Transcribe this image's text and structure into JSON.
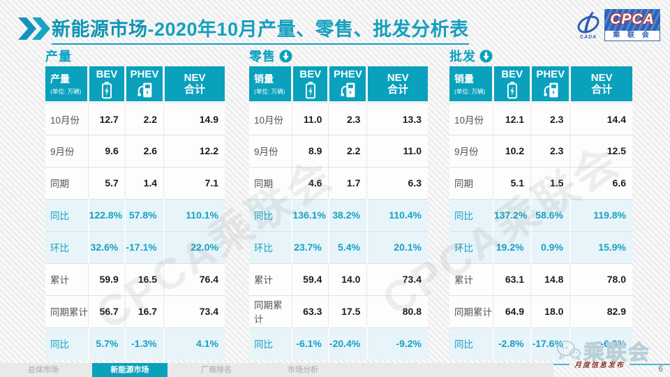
{
  "header": {
    "title_main": "新能源市场",
    "title_rest": "-2020年10月产量、零售、批发分析表",
    "logo": {
      "cpca": "CPCA",
      "cada": "CADA",
      "association": "乘 联 会"
    }
  },
  "chart_data": [
    {
      "type": "table",
      "title": "产量",
      "arrow_icon": false,
      "corner_label": "产量",
      "unit_label": "(单位: 万辆)",
      "columns": [
        {
          "id": "bev",
          "label": "BEV",
          "icon": "battery-icon"
        },
        {
          "id": "phev",
          "label": "PHEV",
          "icon": "charging-station-icon"
        },
        {
          "id": "nev-total",
          "label": "NEV",
          "label2": "合计"
        }
      ],
      "row_labels": [
        "10月份",
        "9月份",
        "同期",
        "同比",
        "环比",
        "累计",
        "同期累计",
        "同比"
      ],
      "highlight_rows": [
        3,
        4,
        7
      ],
      "rows": [
        [
          "12.7",
          "2.2",
          "14.9"
        ],
        [
          "9.6",
          "2.6",
          "12.2"
        ],
        [
          "5.7",
          "1.4",
          "7.1"
        ],
        [
          "122.8%",
          "57.8%",
          "110.1%"
        ],
        [
          "32.6%",
          "-17.1%",
          "22.0%"
        ],
        [
          "59.9",
          "16.5",
          "76.4"
        ],
        [
          "56.7",
          "16.7",
          "73.4"
        ],
        [
          "5.7%",
          "-1.3%",
          "4.1%"
        ]
      ]
    },
    {
      "type": "table",
      "title": "零售",
      "arrow_icon": true,
      "corner_label": "销量",
      "unit_label": "(单位: 万辆)",
      "columns": [
        {
          "id": "bev",
          "label": "BEV",
          "icon": "battery-icon"
        },
        {
          "id": "phev",
          "label": "PHEV",
          "icon": "charging-station-icon"
        },
        {
          "id": "nev-total",
          "label": "NEV",
          "label2": "合计"
        }
      ],
      "row_labels": [
        "10月份",
        "9月份",
        "同期",
        "同比",
        "环比",
        "累计",
        "同期累计",
        "同比"
      ],
      "highlight_rows": [
        3,
        4,
        7
      ],
      "rows": [
        [
          "11.0",
          "2.3",
          "13.3"
        ],
        [
          "8.9",
          "2.2",
          "11.0"
        ],
        [
          "4.6",
          "1.7",
          "6.3"
        ],
        [
          "136.1%",
          "38.2%",
          "110.4%"
        ],
        [
          "23.7%",
          "5.4%",
          "20.1%"
        ],
        [
          "59.4",
          "14.0",
          "73.4"
        ],
        [
          "63.3",
          "17.5",
          "80.8"
        ],
        [
          "-6.1%",
          "-20.4%",
          "-9.2%"
        ]
      ]
    },
    {
      "type": "table",
      "title": "批发",
      "arrow_icon": true,
      "corner_label": "销量",
      "unit_label": "(单位: 万辆)",
      "columns": [
        {
          "id": "bev",
          "label": "BEV",
          "icon": "battery-icon"
        },
        {
          "id": "phev",
          "label": "PHEV",
          "icon": "charging-station-icon"
        },
        {
          "id": "nev-total",
          "label": "NEV",
          "label2": "合计"
        }
      ],
      "row_labels": [
        "10月份",
        "9月份",
        "同期",
        "同比",
        "环比",
        "累计",
        "同期累计",
        "同比"
      ],
      "highlight_rows": [
        3,
        4,
        7
      ],
      "rows": [
        [
          "12.1",
          "2.3",
          "14.4"
        ],
        [
          "10.2",
          "2.3",
          "12.5"
        ],
        [
          "5.1",
          "1.5",
          "6.6"
        ],
        [
          "137.2%",
          "58.6%",
          "119.8%"
        ],
        [
          "19.2%",
          "0.9%",
          "15.9%"
        ],
        [
          "63.1",
          "14.8",
          "78.0"
        ],
        [
          "64.9",
          "18.0",
          "82.9"
        ],
        [
          "-2.8%",
          "-17.6%",
          "-6.0%"
        ]
      ]
    }
  ],
  "watermarks": {
    "diagonal_text": "CPCA乘联会",
    "wechat_text": "乘联会"
  },
  "footer": {
    "release_label": "月度信息发布",
    "page_number": "6",
    "tabs": [
      {
        "label": "总体市场",
        "active": false
      },
      {
        "label": "新能源市场",
        "active": true
      },
      {
        "label": "厂商排名",
        "active": false
      },
      {
        "label": "市场分析",
        "active": false
      }
    ]
  },
  "colors": {
    "accent_teal": "#0aa1bd",
    "highlight_bg": "#e7f4f9",
    "highlight_text": "#17a0c2",
    "logo_blue": "#2a63bb",
    "release_red": "#8f3a28"
  }
}
